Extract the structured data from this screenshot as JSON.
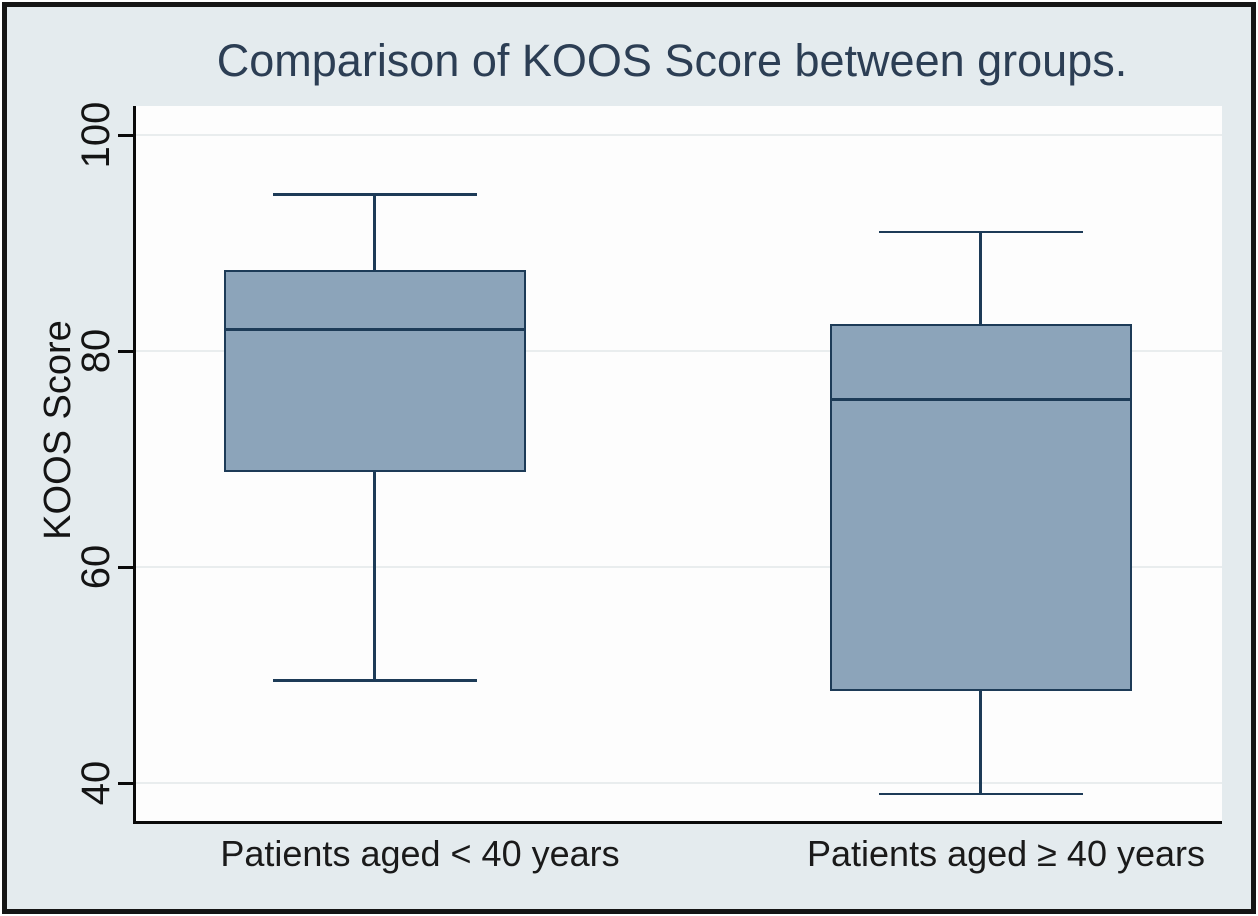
{
  "chart_data": {
    "type": "boxplot",
    "title": "Comparison of KOOS Score between groups.",
    "ylabel": "KOOS Score",
    "xlabel": "",
    "categories": [
      "Patients aged < 40 years",
      "Patients aged ≥ 40 years"
    ],
    "y_axis": {
      "ticks": [
        40,
        60,
        80,
        100
      ],
      "range": [
        36.4,
        102.7
      ],
      "grid": "horizontal gridlines at ticks"
    },
    "legend": "none",
    "series": [
      {
        "name": "Patients aged < 40 years",
        "whisker_low": 49.5,
        "q1": 68.8,
        "median": 82,
        "q3": 87.5,
        "whisker_high": 94.5
      },
      {
        "name": "Patients aged ≥ 40 years",
        "whisker_low": 39,
        "q1": 48.5,
        "median": 75.5,
        "q3": 82.5,
        "whisker_high": 91
      }
    ],
    "colors": {
      "box_fill": "#8ca4ba",
      "box_stroke": "#1d3b57",
      "axis": "#0a0a0a",
      "gridline": "#e9edee",
      "canvas_background": "#e4ebee",
      "plot_background": "#fdfdfd",
      "title_color": "#2c3e54",
      "frame_border": "#151515"
    }
  }
}
